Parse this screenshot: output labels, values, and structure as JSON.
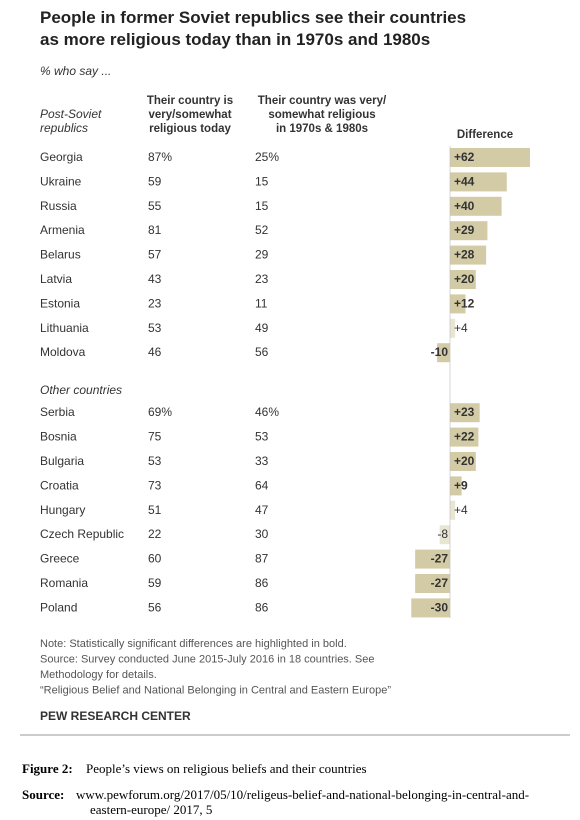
{
  "title": [
    "People in former Soviet republics see their countries",
    "as more religious today than in 1970s and 1980s"
  ],
  "subtitle": "% who say ...",
  "headers": {
    "group": [
      "Post-Soviet",
      "republics"
    ],
    "today": [
      "Their country is",
      "very/somewhat",
      "religious today"
    ],
    "past": [
      "Their country was very/",
      "somewhat religious",
      "in 1970s & 1980s"
    ],
    "diff": "Difference"
  },
  "groups": [
    {
      "name": null,
      "rows": [
        {
          "country": "Georgia",
          "today": "87%",
          "past": "25%",
          "diff": 62,
          "diff_label": "+62",
          "bold": true
        },
        {
          "country": "Ukraine",
          "today": "59",
          "past": "15",
          "diff": 44,
          "diff_label": "+44",
          "bold": true
        },
        {
          "country": "Russia",
          "today": "55",
          "past": "15",
          "diff": 40,
          "diff_label": "+40",
          "bold": true
        },
        {
          "country": "Armenia",
          "today": "81",
          "past": "52",
          "diff": 29,
          "diff_label": "+29",
          "bold": true
        },
        {
          "country": "Belarus",
          "today": "57",
          "past": "29",
          "diff": 28,
          "diff_label": "+28",
          "bold": true
        },
        {
          "country": "Latvia",
          "today": "43",
          "past": "23",
          "diff": 20,
          "diff_label": "+20",
          "bold": true
        },
        {
          "country": "Estonia",
          "today": "23",
          "past": "11",
          "diff": 12,
          "diff_label": "+12",
          "bold": true
        },
        {
          "country": "Lithuania",
          "today": "53",
          "past": "49",
          "diff": 4,
          "diff_label": "+4",
          "bold": false
        },
        {
          "country": "Moldova",
          "today": "46",
          "past": "56",
          "diff": -10,
          "diff_label": "-10",
          "bold": true
        }
      ]
    },
    {
      "name": "Other countries",
      "rows": [
        {
          "country": "Serbia",
          "today": "69%",
          "past": "46%",
          "diff": 23,
          "diff_label": "+23",
          "bold": true
        },
        {
          "country": "Bosnia",
          "today": "75",
          "past": "53",
          "diff": 22,
          "diff_label": "+22",
          "bold": true
        },
        {
          "country": "Bulgaria",
          "today": "53",
          "past": "33",
          "diff": 20,
          "diff_label": "+20",
          "bold": true
        },
        {
          "country": "Croatia",
          "today": "73",
          "past": "64",
          "diff": 9,
          "diff_label": "+9",
          "bold": true
        },
        {
          "country": "Hungary",
          "today": "51",
          "past": "47",
          "diff": 4,
          "diff_label": "+4",
          "bold": false
        },
        {
          "country": "Czech Republic",
          "today": "22",
          "past": "30",
          "diff": -8,
          "diff_label": "-8",
          "bold": false
        },
        {
          "country": "Greece",
          "today": "60",
          "past": "87",
          "diff": -27,
          "diff_label": "-27",
          "bold": true
        },
        {
          "country": "Romania",
          "today": "59",
          "past": "86",
          "diff": -27,
          "diff_label": "-27",
          "bold": true
        },
        {
          "country": "Poland",
          "today": "56",
          "past": "86",
          "diff": -30,
          "diff_label": "-30",
          "bold": true
        }
      ]
    }
  ],
  "notes": [
    "Note: Statistically significant differences are highlighted in bold.",
    "Source: Survey conducted June 2015-July 2016 in 18 countries. See",
    "Methodology for details.",
    "“Religious Belief and National Belonging in Central and Eastern Europe”"
  ],
  "brand": "PEW RESEARCH CENTER",
  "caption": {
    "label": "Figure 2:",
    "text": "People’s views on religious beliefs and their countries"
  },
  "source": {
    "label": "Source:",
    "lines": [
      "www.pewforum.org/2017/05/10/religeus-belief-and-national-belonging-in-central-and-",
      "eastern-europe/ 2017, 5"
    ]
  },
  "bar_colors": {
    "bold": "#d3cba5",
    "normal": "#e9e5d3"
  }
}
